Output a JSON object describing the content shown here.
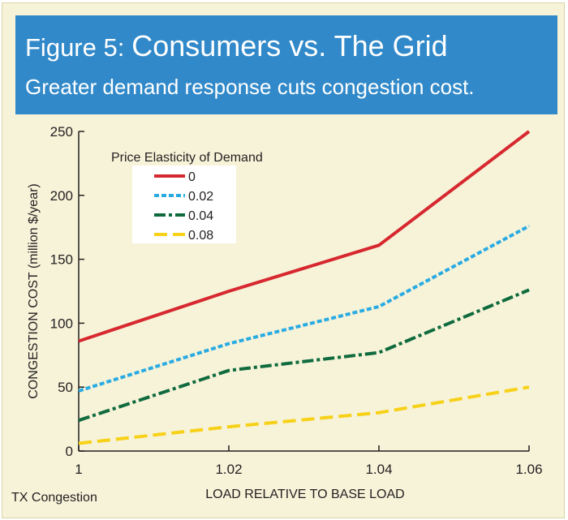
{
  "figure": {
    "label": "Figure 5:",
    "title": "Consumers vs. The Grid",
    "subtitle": "Greater demand response cuts congestion cost."
  },
  "source_note": "TX Congestion",
  "colors": {
    "background": "#f6f3d9",
    "banner": "#3189c9",
    "series": [
      "#d7282f",
      "#29abe2",
      "#0f6b3d",
      "#f7d117"
    ]
  },
  "chart_data": {
    "type": "line",
    "xlabel": "LOAD RELATIVE TO BASE LOAD",
    "ylabel": "CONGESTION COST (million $/year)",
    "x": [
      1,
      1.02,
      1.04,
      1.06
    ],
    "x_tick_labels": [
      "1",
      "1.02",
      "1.04",
      "1.06"
    ],
    "xlim": [
      1,
      1.06
    ],
    "ylim": [
      0,
      250
    ],
    "y_ticks": [
      0,
      50,
      100,
      150,
      200,
      250
    ],
    "grid": false,
    "legend_title": "Price Elasticity of Demand",
    "legend_position": "top-left",
    "series": [
      {
        "name": "0",
        "values": [
          86,
          125,
          161,
          250
        ],
        "color": "#d7282f",
        "dash": "solid"
      },
      {
        "name": "0.02",
        "values": [
          47,
          84,
          113,
          176
        ],
        "color": "#29abe2",
        "dash": "dotted"
      },
      {
        "name": "0.04",
        "values": [
          24,
          63,
          77,
          126
        ],
        "color": "#0f6b3d",
        "dash": "dash-dot"
      },
      {
        "name": "0.08",
        "values": [
          6,
          19,
          30,
          50
        ],
        "color": "#f7d117",
        "dash": "dashed"
      }
    ]
  }
}
